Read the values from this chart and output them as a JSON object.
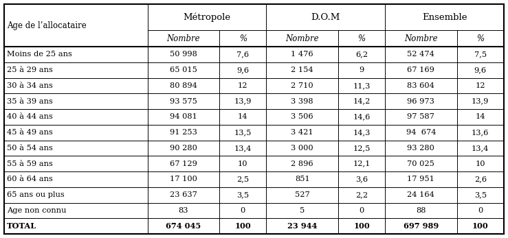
{
  "col_header_row1": [
    "Age de l’allocataire",
    "Métropole",
    "",
    "D.O.M",
    "",
    "Ensemble",
    ""
  ],
  "col_header_row2": [
    "",
    "Nombre",
    "%",
    "Nombre",
    "%",
    "Nombre",
    "%"
  ],
  "rows": [
    [
      "Moins de 25 ans",
      "50 998",
      "7,6",
      "1 476",
      "6,2",
      "52 474",
      "7,5"
    ],
    [
      "25 à 29 ans",
      "65 015",
      "9,6",
      "2 154",
      "9",
      "67 169",
      "9,6"
    ],
    [
      "30 à 34 ans",
      "80 894",
      "12",
      "2 710",
      "11,3",
      "83 604",
      "12"
    ],
    [
      "35 à 39 ans",
      "93 575",
      "13,9",
      "3 398",
      "14,2",
      "96 973",
      "13,9"
    ],
    [
      "40 à 44 ans",
      "94 081",
      "14",
      "3 506",
      "14,6",
      "97 587",
      "14"
    ],
    [
      "45 à 49 ans",
      "91 253",
      "13,5",
      "3 421",
      "14,3",
      "94  674",
      "13,6"
    ],
    [
      "50 à 54 ans",
      "90 280",
      "13,4",
      "3 000",
      "12,5",
      "93 280",
      "13,4"
    ],
    [
      "55 à 59 ans",
      "67 129",
      "10",
      "2 896",
      "12,1",
      "70 025",
      "10"
    ],
    [
      "60 à 64 ans",
      "17 100",
      "2,5",
      "851",
      "3,6",
      "17 951",
      "2,6"
    ],
    [
      "65 ans ou plus",
      "23 637",
      "3,5",
      "527",
      "2,2",
      "24 164",
      "3,5"
    ],
    [
      "Age non connu",
      "83",
      "0",
      "5",
      "0",
      "88",
      "0"
    ],
    [
      "TOTAL",
      "674 045",
      "100",
      "23 944",
      "100",
      "697 989",
      "100"
    ]
  ],
  "bg_color": "#ffffff",
  "text_color": "#000000"
}
